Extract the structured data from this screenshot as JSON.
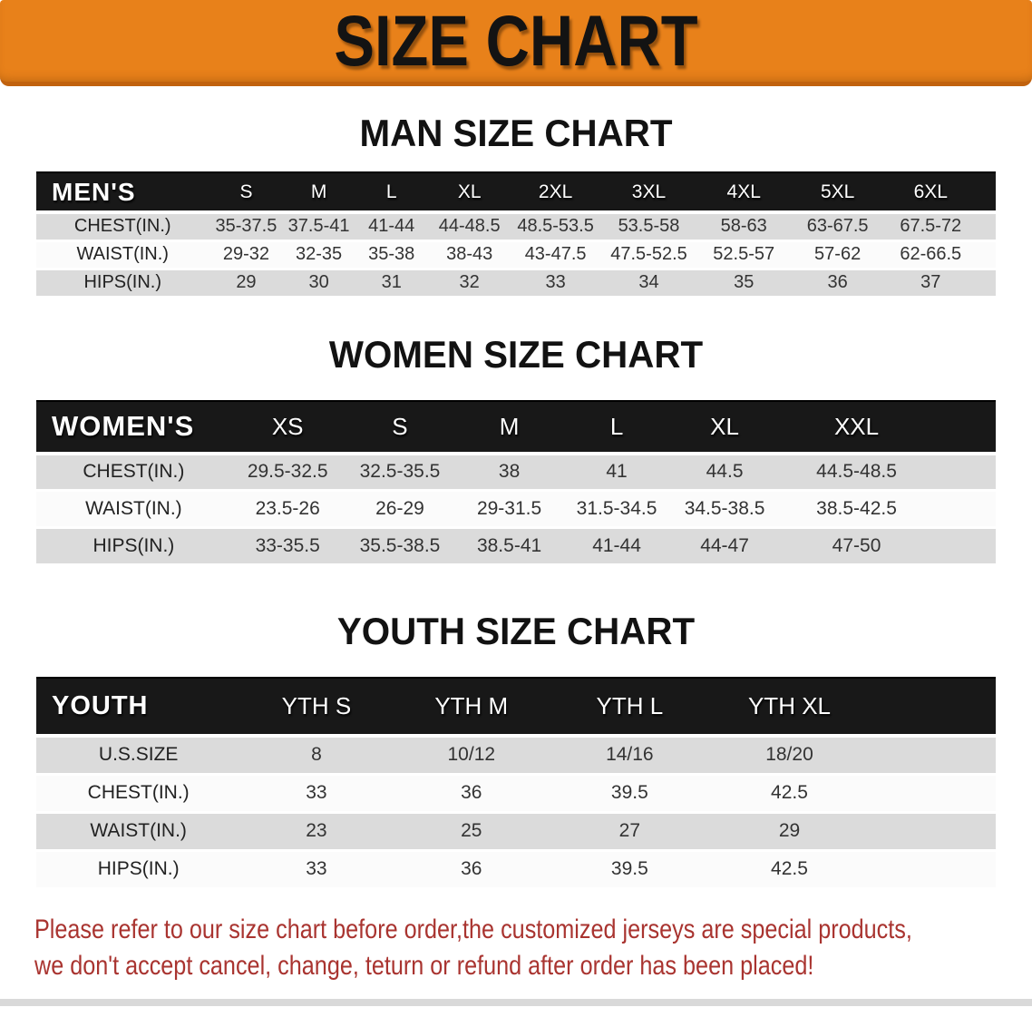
{
  "banner": {
    "title": "SIZE CHART",
    "bg_color": "#E8811A"
  },
  "sections": [
    {
      "id": "men",
      "heading": "MAN SIZE CHART",
      "table": {
        "corner_label": "MEN'S",
        "size_headers": [
          "S",
          "M",
          "L",
          "XL",
          "2XL",
          "3XL",
          "4XL",
          "5XL",
          "6XL"
        ],
        "rows": [
          {
            "label": "CHEST(IN.)",
            "values": [
              "35-37.5",
              "37.5-41",
              "41-44",
              "44-48.5",
              "48.5-53.5",
              "53.5-58",
              "58-63",
              "63-67.5",
              "67.5-72"
            ]
          },
          {
            "label": "WAIST(IN.)",
            "values": [
              "29-32",
              "32-35",
              "35-38",
              "38-43",
              "43-47.5",
              "47.5-52.5",
              "52.5-57",
              "57-62",
              "62-66.5"
            ]
          },
          {
            "label": "HIPS(IN.)",
            "values": [
              "29",
              "30",
              "31",
              "32",
              "33",
              "34",
              "35",
              "36",
              "37"
            ]
          }
        ]
      }
    },
    {
      "id": "women",
      "heading": "WOMEN SIZE CHART",
      "table": {
        "corner_label": "WOMEN'S",
        "size_headers": [
          "XS",
          "S",
          "M",
          "L",
          "XL",
          "XXL"
        ],
        "rows": [
          {
            "label": "CHEST(IN.)",
            "values": [
              "29.5-32.5",
              "32.5-35.5",
              "38",
              "41",
              "44.5",
              "44.5-48.5"
            ]
          },
          {
            "label": "WAIST(IN.)",
            "values": [
              "23.5-26",
              "26-29",
              "29-31.5",
              "31.5-34.5",
              "34.5-38.5",
              "38.5-42.5"
            ]
          },
          {
            "label": "HIPS(IN.)",
            "values": [
              "33-35.5",
              "35.5-38.5",
              "38.5-41",
              "41-44",
              "44-47",
              "47-50"
            ]
          }
        ]
      }
    },
    {
      "id": "youth",
      "heading": "YOUTH SIZE CHART",
      "table": {
        "corner_label": "YOUTH",
        "size_headers": [
          "YTH S",
          "YTH M",
          "YTH L",
          "YTH XL"
        ],
        "rows": [
          {
            "label": "U.S.SIZE",
            "values": [
              "8",
              "10/12",
              "14/16",
              "18/20"
            ]
          },
          {
            "label": "CHEST(IN.)",
            "values": [
              "33",
              "36",
              "39.5",
              "42.5"
            ]
          },
          {
            "label": "WAIST(IN.)",
            "values": [
              "23",
              "25",
              "27",
              "29"
            ]
          },
          {
            "label": "HIPS(IN.)",
            "values": [
              "33",
              "36",
              "39.5",
              "42.5"
            ]
          }
        ]
      }
    }
  ],
  "footer": {
    "line1": "Please refer to our size chart before order,the customized jerseys are special products,",
    "line2": "we don't accept cancel, change, teturn or refund after order has been placed!",
    "text_color": "#A93430"
  }
}
